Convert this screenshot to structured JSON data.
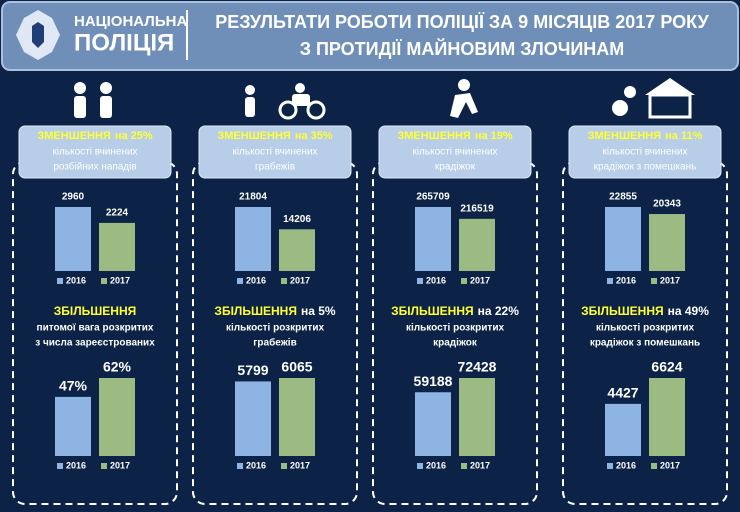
{
  "logo": {
    "lines": [
      "НАЦІОНАЛЬНА",
      "ПОЛІЦІЯ"
    ]
  },
  "title": [
    "РЕЗУЛЬТАТИ РОБОТИ ПОЛІЦІЇ ЗА 9 МІСЯЦІВ 2017 РОКУ",
    "З ПРОТИДІЇ МАЙНОВИМ ЗЛОЧИНАМ"
  ],
  "chart_data": [
    {
      "type": "bar",
      "heading": "ЗМЕНШЕННЯ",
      "heading_change": "на 25%",
      "subtitle": [
        "кількості вчинених",
        "розбійних нападів"
      ],
      "categories": [
        "2016",
        "2017"
      ],
      "values": [
        2960,
        2224
      ],
      "colors": [
        "#8db4e2",
        "#9bbb83"
      ]
    },
    {
      "type": "bar",
      "heading": "ЗМЕНШЕННЯ",
      "heading_change": "на 35%",
      "subtitle": [
        "кількості вчинених",
        "грабежів"
      ],
      "categories": [
        "2016",
        "2017"
      ],
      "values": [
        21804,
        14206
      ],
      "colors": [
        "#8db4e2",
        "#9bbb83"
      ]
    },
    {
      "type": "bar",
      "heading": "ЗМЕНШЕННЯ",
      "heading_change": "на 19%",
      "subtitle": [
        "кількості вчинених",
        "крадіжок"
      ],
      "categories": [
        "2016",
        "2017"
      ],
      "values": [
        265709,
        216519
      ],
      "colors": [
        "#8db4e2",
        "#9bbb83"
      ]
    },
    {
      "type": "bar",
      "heading": "ЗМЕНШЕННЯ",
      "heading_change": "на 11%",
      "subtitle": [
        "кількості вчинених",
        "крадіжок з помешкань"
      ],
      "categories": [
        "2016",
        "2017"
      ],
      "values": [
        22855,
        20343
      ],
      "colors": [
        "#8db4e2",
        "#9bbb83"
      ]
    },
    {
      "type": "bar",
      "heading": "ЗБІЛЬШЕННЯ",
      "subtitle": [
        "питомої вага розкритих",
        "з числа зареєстрованих"
      ],
      "categories": [
        "2016",
        "2017"
      ],
      "values": [
        47,
        62
      ],
      "value_labels": [
        "47%",
        "62%"
      ],
      "colors": [
        "#8db4e2",
        "#9bbb83"
      ]
    },
    {
      "type": "bar",
      "heading": "ЗБІЛЬШЕННЯ",
      "heading_change": "на 5%",
      "subtitle": [
        "кількості розкритих",
        "грабежів"
      ],
      "categories": [
        "2016",
        "2017"
      ],
      "values": [
        5799,
        6065
      ],
      "colors": [
        "#8db4e2",
        "#9bbb83"
      ]
    },
    {
      "type": "bar",
      "heading": "ЗБІЛЬШЕННЯ",
      "heading_change": "на 22%",
      "subtitle": [
        "кількості розкритих",
        "крадіжок"
      ],
      "categories": [
        "2016",
        "2017"
      ],
      "values": [
        59188,
        72428
      ],
      "colors": [
        "#8db4e2",
        "#9bbb83"
      ]
    },
    {
      "type": "bar",
      "heading": "ЗБІЛЬШЕННЯ",
      "heading_change": "на 49%",
      "subtitle": [
        "кількості розкритих",
        "крадіжок з помешкань"
      ],
      "categories": [
        "2016",
        "2017"
      ],
      "values": [
        4427,
        6624
      ],
      "colors": [
        "#8db4e2",
        "#9bbb83"
      ]
    }
  ]
}
